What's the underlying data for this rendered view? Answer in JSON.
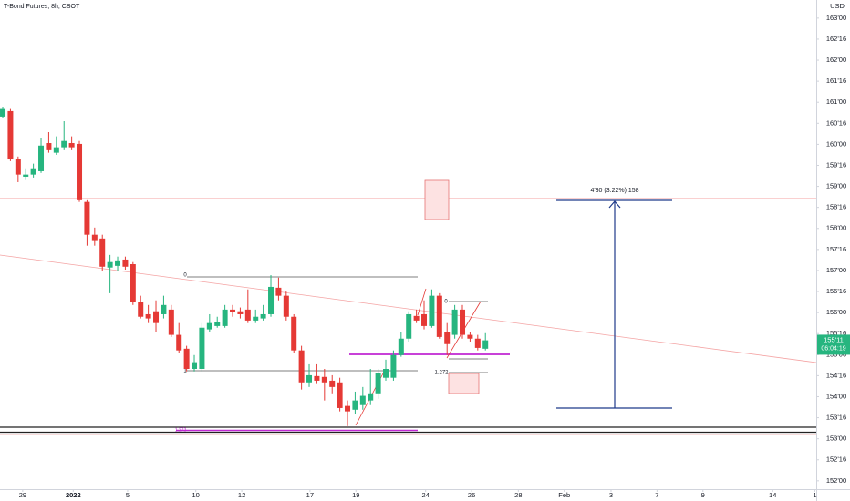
{
  "chart_data": {
    "type": "candlestick",
    "title": "T-Bond Futures, 8h, CBOT",
    "currency": "USD",
    "up_color": "#26b57f",
    "down_color": "#e53935",
    "x": [
      0,
      1,
      2,
      3,
      4,
      5,
      6,
      7,
      8,
      9,
      10,
      11,
      12,
      13,
      14,
      15,
      16,
      17,
      18,
      19,
      20,
      21,
      22,
      23,
      24,
      25,
      26,
      27,
      28,
      29,
      30,
      31,
      32,
      33,
      34,
      35,
      36,
      37,
      38,
      39,
      40,
      41,
      42,
      43,
      44,
      45,
      46,
      47,
      48,
      49,
      50,
      51,
      52,
      53,
      54,
      55,
      56,
      57,
      58,
      59,
      60,
      61,
      62,
      63
    ],
    "open": [
      160.66,
      160.79,
      159.64,
      159.23,
      159.28,
      159.36,
      160.03,
      159.8,
      159.93,
      160.03,
      160.01,
      158.63,
      157.85,
      157.76,
      157.07,
      157.11,
      157.26,
      157.15,
      156.25,
      155.96,
      156.03,
      155.96,
      156.07,
      155.47,
      155.14,
      154.66,
      154.66,
      155.6,
      155.68,
      155.68,
      156.07,
      156.03,
      156.07,
      155.81,
      155.86,
      155.96,
      156.59,
      156.4,
      155.9,
      155.1,
      154.34,
      154.49,
      154.47,
      154.38,
      154.34,
      153.78,
      153.69,
      153.8,
      153.91,
      154.08,
      154.45,
      154.45,
      154.99,
      155.38,
      155.92,
      155.96,
      155.68,
      156.4,
      155.53,
      155.47,
      156.07,
      155.47,
      155.38,
      155.14
    ],
    "high": [
      160.88,
      160.84,
      159.71,
      159.43,
      159.54,
      160.14,
      160.29,
      160.19,
      160.55,
      160.19,
      160.08,
      158.67,
      158.02,
      157.85,
      157.37,
      157.33,
      157.33,
      157.2,
      156.4,
      156.18,
      156.29,
      156.4,
      156.18,
      155.75,
      155.21,
      154.99,
      155.75,
      155.96,
      155.9,
      156.18,
      156.18,
      156.12,
      156.55,
      156.07,
      156.18,
      156.89,
      156.83,
      156.5,
      155.96,
      155.21,
      154.77,
      154.77,
      154.66,
      154.51,
      154.45,
      153.91,
      154.12,
      154.23,
      154.66,
      154.66,
      154.88,
      155.1,
      155.53,
      156.03,
      156.07,
      156.29,
      156.55,
      156.46,
      155.75,
      156.18,
      156.18,
      155.53,
      155.47,
      155.51
    ],
    "low": [
      160.62,
      159.6,
      159.1,
      159.15,
      159.21,
      159.32,
      159.8,
      159.75,
      159.86,
      159.86,
      158.63,
      157.59,
      157.59,
      156.98,
      156.46,
      156.98,
      157.02,
      156.18,
      155.86,
      155.75,
      155.53,
      155.86,
      155.42,
      155.03,
      154.6,
      154.6,
      154.6,
      155.53,
      155.64,
      155.64,
      155.9,
      155.86,
      155.75,
      155.75,
      155.81,
      155.9,
      156.29,
      155.81,
      155.03,
      154.17,
      154.23,
      154.3,
      153.91,
      154.08,
      153.65,
      153.3,
      153.58,
      153.69,
      153.8,
      153.95,
      154.38,
      154.38,
      154.95,
      155.31,
      155.75,
      155.6,
      155.64,
      155.38,
      154.99,
      155.38,
      155.38,
      155.31,
      155.1,
      155.1
    ],
    "close": [
      160.84,
      159.64,
      159.28,
      159.28,
      159.43,
      159.97,
      159.86,
      159.93,
      160.08,
      159.93,
      158.67,
      157.85,
      157.7,
      157.09,
      157.2,
      157.24,
      157.09,
      156.25,
      155.9,
      155.86,
      155.75,
      156.18,
      155.47,
      155.1,
      154.66,
      154.82,
      155.64,
      155.75,
      155.77,
      156.07,
      156.01,
      155.96,
      155.81,
      155.9,
      155.96,
      156.61,
      156.4,
      155.9,
      155.1,
      154.34,
      154.51,
      154.38,
      154.34,
      154.23,
      153.73,
      153.65,
      153.91,
      154.02,
      154.08,
      154.56,
      154.66,
      154.99,
      155.38,
      155.96,
      155.81,
      155.68,
      156.4,
      155.42,
      155.25,
      156.07,
      155.47,
      155.38,
      155.16,
      155.34
    ],
    "xlim": [
      -0.36,
      106.19
    ],
    "xticks": [
      {
        "value": 2.6,
        "label": "29"
      },
      {
        "value": 9.2,
        "label": "2022"
      },
      {
        "value": 16.3,
        "label": "5"
      },
      {
        "value": 25.2,
        "label": "10"
      },
      {
        "value": 31.2,
        "label": "12"
      },
      {
        "value": 40.1,
        "label": "17"
      },
      {
        "value": 46.1,
        "label": "19"
      },
      {
        "value": 55.2,
        "label": "24"
      },
      {
        "value": 61.2,
        "label": "26"
      },
      {
        "value": 67.3,
        "label": "28"
      },
      {
        "value": 73.3,
        "label": "Feb"
      },
      {
        "value": 79.4,
        "label": "3"
      },
      {
        "value": 85.4,
        "label": "7"
      },
      {
        "value": 91.4,
        "label": "9"
      },
      {
        "value": 100.5,
        "label": "14"
      },
      {
        "value": 106.0,
        "label": "1"
      }
    ],
    "ylim": [
      151.78,
      163.43
    ],
    "yticks": [
      {
        "value": 163,
        "label": "163'00"
      },
      {
        "value": 162.5,
        "label": "162'16"
      },
      {
        "value": 162,
        "label": "162'00"
      },
      {
        "value": 161.5,
        "label": "161'16"
      },
      {
        "value": 161,
        "label": "161'00"
      },
      {
        "value": 160.5,
        "label": "160'16"
      },
      {
        "value": 160,
        "label": "160'00"
      },
      {
        "value": 159.5,
        "label": "159'16"
      },
      {
        "value": 159,
        "label": "159'00"
      },
      {
        "value": 158.5,
        "label": "158'16"
      },
      {
        "value": 158,
        "label": "158'00"
      },
      {
        "value": 157.5,
        "label": "157'16"
      },
      {
        "value": 157,
        "label": "157'00"
      },
      {
        "value": 156.5,
        "label": "156'16"
      },
      {
        "value": 156,
        "label": "156'00"
      },
      {
        "value": 155.5,
        "label": "155'16"
      },
      {
        "value": 155,
        "label": "155'00"
      },
      {
        "value": 154.5,
        "label": "154'16"
      },
      {
        "value": 154,
        "label": "154'00"
      },
      {
        "value": 153.5,
        "label": "153'16"
      },
      {
        "value": 153,
        "label": "153'00"
      },
      {
        "value": 152.5,
        "label": "152'16"
      },
      {
        "value": 152,
        "label": "152'00"
      }
    ],
    "last_price": {
      "value": 155.34375,
      "label": "155'11"
    },
    "countdown": "06:04:19",
    "annotations": {
      "measure": "4'30 (3.22%) 158",
      "fib1_top": "0",
      "fib1_bottom": "1",
      "fib1_ext": "1.272",
      "fib2_top": "0",
      "fib2_ext": "1.272"
    }
  }
}
